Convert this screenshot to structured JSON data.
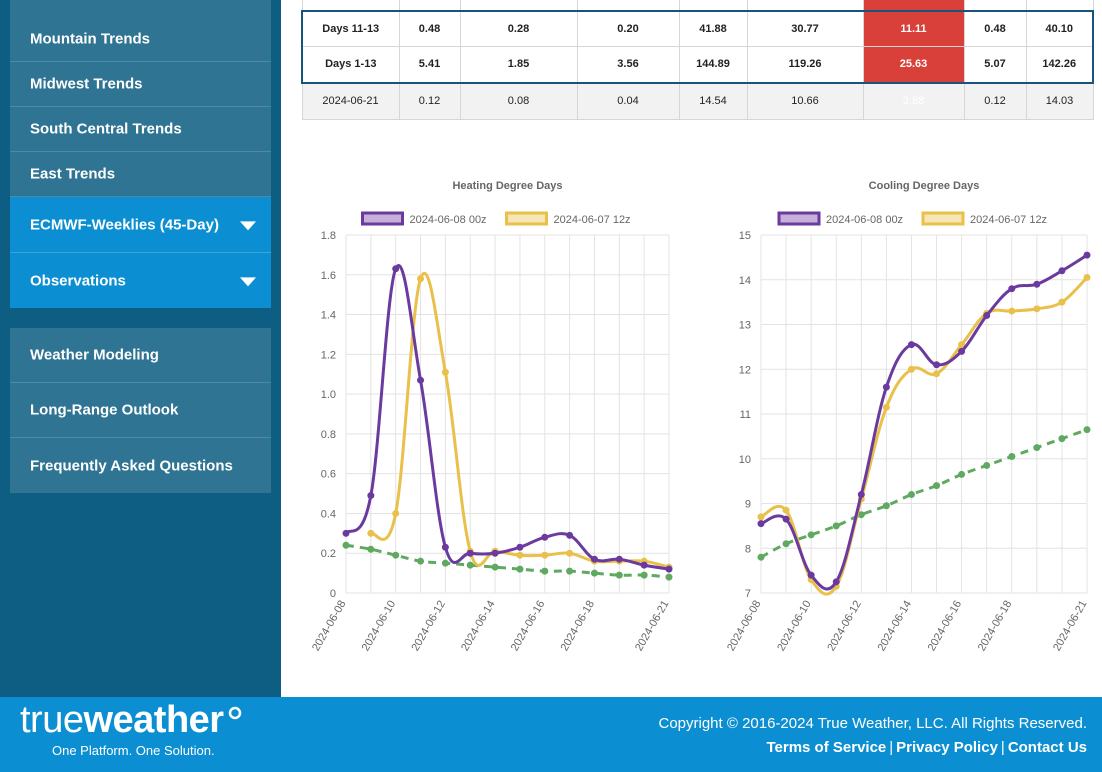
{
  "sidebar": {
    "group1": [
      {
        "label": "Mountain Trends"
      },
      {
        "label": "Midwest Trends"
      },
      {
        "label": "South Central Trends"
      },
      {
        "label": "East Trends"
      },
      {
        "label": "ECMWF-Weeklies (45-Day)"
      },
      {
        "label": "Observations"
      }
    ],
    "group2": [
      {
        "label": "Weather Modeling"
      },
      {
        "label": "Long-Range Outlook"
      },
      {
        "label": "Frequently Asked Questions"
      }
    ]
  },
  "table": {
    "rows": [
      {
        "label": "Days 11-13",
        "values": [
          "0.48",
          "0.28",
          "0.20",
          "41.88",
          "30.77",
          "11.11",
          "0.48",
          "40.10"
        ]
      },
      {
        "label": "Days 1-13",
        "values": [
          "5.41",
          "1.85",
          "3.56",
          "144.89",
          "119.26",
          "25.63",
          "5.07",
          "142.26"
        ]
      },
      {
        "label": "2024-06-21",
        "values": [
          "0.12",
          "0.08",
          "0.04",
          "14.54",
          "10.66",
          "3.88",
          "0.12",
          "14.03"
        ]
      }
    ],
    "highlight_color": "#d9403a"
  },
  "chart_data": [
    {
      "type": "line",
      "title": "Heating Degree Days",
      "x": [
        "2024-06-08",
        "2024-06-09",
        "2024-06-10",
        "2024-06-11",
        "2024-06-12",
        "2024-06-13",
        "2024-06-14",
        "2024-06-15",
        "2024-06-16",
        "2024-06-17",
        "2024-06-18",
        "2024-06-19",
        "2024-06-20",
        "2024-06-21"
      ],
      "x_tick_labels": [
        "2024-06-08",
        "2024-06-10",
        "2024-06-12",
        "2024-06-14",
        "2024-06-16",
        "2024-06-18",
        "2024-06-21"
      ],
      "ylim": [
        0,
        1.8
      ],
      "y_ticks": [
        "0",
        "0.2",
        "0.4",
        "0.6",
        "0.8",
        "1.0",
        "1.2",
        "1.4",
        "1.6",
        "1.8"
      ],
      "legend_position": "top",
      "grid": true,
      "series": [
        {
          "name": "2024-06-08 00z",
          "color": "#6b3a9e",
          "values": [
            0.3,
            0.49,
            1.63,
            1.07,
            0.23,
            0.2,
            0.2,
            0.23,
            0.28,
            0.29,
            0.17,
            0.17,
            0.14,
            0.12
          ]
        },
        {
          "name": "2024-06-07 12z",
          "color": "#e8c04a",
          "values": [
            null,
            0.3,
            0.4,
            1.58,
            1.11,
            0.21,
            0.21,
            0.19,
            0.19,
            0.2,
            0.16,
            0.16,
            0.16,
            0.13
          ]
        },
        {
          "color": "#5fa960",
          "dashed": true,
          "values": [
            0.24,
            0.22,
            0.19,
            0.16,
            0.15,
            0.14,
            0.13,
            0.12,
            0.11,
            0.11,
            0.1,
            0.09,
            0.09,
            0.08
          ]
        }
      ]
    },
    {
      "type": "line",
      "title": "Cooling Degree Days",
      "x": [
        "2024-06-08",
        "2024-06-09",
        "2024-06-10",
        "2024-06-11",
        "2024-06-12",
        "2024-06-13",
        "2024-06-14",
        "2024-06-15",
        "2024-06-16",
        "2024-06-17",
        "2024-06-18",
        "2024-06-19",
        "2024-06-20",
        "2024-06-21"
      ],
      "x_tick_labels": [
        "2024-06-08",
        "2024-06-10",
        "2024-06-12",
        "2024-06-14",
        "2024-06-16",
        "2024-06-18",
        "2024-06-21"
      ],
      "ylim": [
        7,
        15
      ],
      "y_ticks": [
        "7",
        "8",
        "9",
        "10",
        "11",
        "12",
        "13",
        "14",
        "15"
      ],
      "legend_position": "top",
      "grid": true,
      "series": [
        {
          "name": "2024-06-08 00z",
          "color": "#6b3a9e",
          "values": [
            8.55,
            8.65,
            7.4,
            7.25,
            9.2,
            11.6,
            12.55,
            12.1,
            12.4,
            13.2,
            13.8,
            13.9,
            14.2,
            14.55
          ]
        },
        {
          "name": "2024-06-07 12z",
          "color": "#e8c04a",
          "values": [
            8.7,
            8.85,
            7.3,
            7.15,
            9.1,
            11.15,
            12.0,
            11.9,
            12.55,
            13.25,
            13.3,
            13.35,
            13.5,
            14.05
          ]
        },
        {
          "color": "#5fa960",
          "dashed": true,
          "values": [
            7.8,
            8.1,
            8.3,
            8.5,
            8.75,
            8.95,
            9.2,
            9.4,
            9.65,
            9.85,
            10.05,
            10.25,
            10.45,
            10.65
          ]
        }
      ]
    }
  ],
  "footer": {
    "logo_true": "true",
    "logo_weather": "weather",
    "tagline": "One Platform. One Solution.",
    "copyright": "Copyright © 2016-2024 True Weather, LLC. All Rights Reserved.",
    "links": [
      "Terms of Service",
      "Privacy Policy",
      "Contact Us"
    ],
    "separator": "|"
  }
}
